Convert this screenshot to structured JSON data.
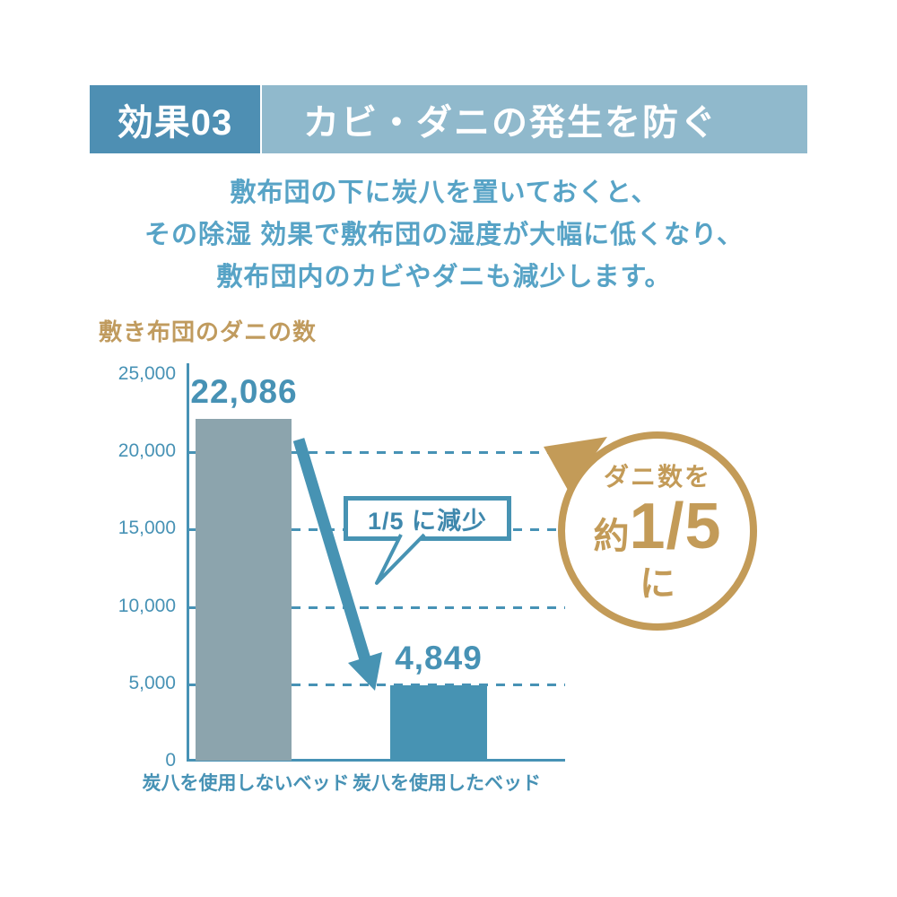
{
  "header": {
    "badge": "効果03",
    "title": "カビ・ダニの発生を防ぐ"
  },
  "intro": {
    "lines": [
      "敷布団の下に炭八を置いておくと、",
      "その除湿 効果で敷布団の湿度が大幅に低くなり、",
      "敷布団内のカビやダニも減少します。"
    ]
  },
  "chart_data": {
    "type": "bar",
    "title": "敷き布団のダニの数",
    "categories": [
      "炭八を使用しないベッド",
      "炭八を使用したベッド"
    ],
    "values": [
      22086,
      4849
    ],
    "value_labels": [
      "22,086",
      "4,849"
    ],
    "bar_colors": [
      "#8CA4AD",
      "#4793B3"
    ],
    "ylim": [
      0,
      25000
    ],
    "yticks": [
      "25,000",
      "20,000",
      "15,000",
      "10,000",
      "5,000",
      "0"
    ],
    "grid": "dashed horizontal at 5,000 intervals",
    "legend": "none",
    "annotation": "1/5 に減少"
  },
  "badge_circle": {
    "line1": "ダニ数を",
    "prefix": "約",
    "fraction": "1/5",
    "suffix": "に"
  },
  "colors": {
    "header_badge_bg": "#4E8FB3",
    "header_title_bg": "#90B9CC",
    "intro_text": "#57A3C6",
    "axis_blue": "#4792B5",
    "bar_no_sumihachi": "#8CA4AD",
    "bar_with_sumihachi": "#4793B3",
    "gold": "#C39B58",
    "chart_title_gold": "#C09B5E"
  }
}
